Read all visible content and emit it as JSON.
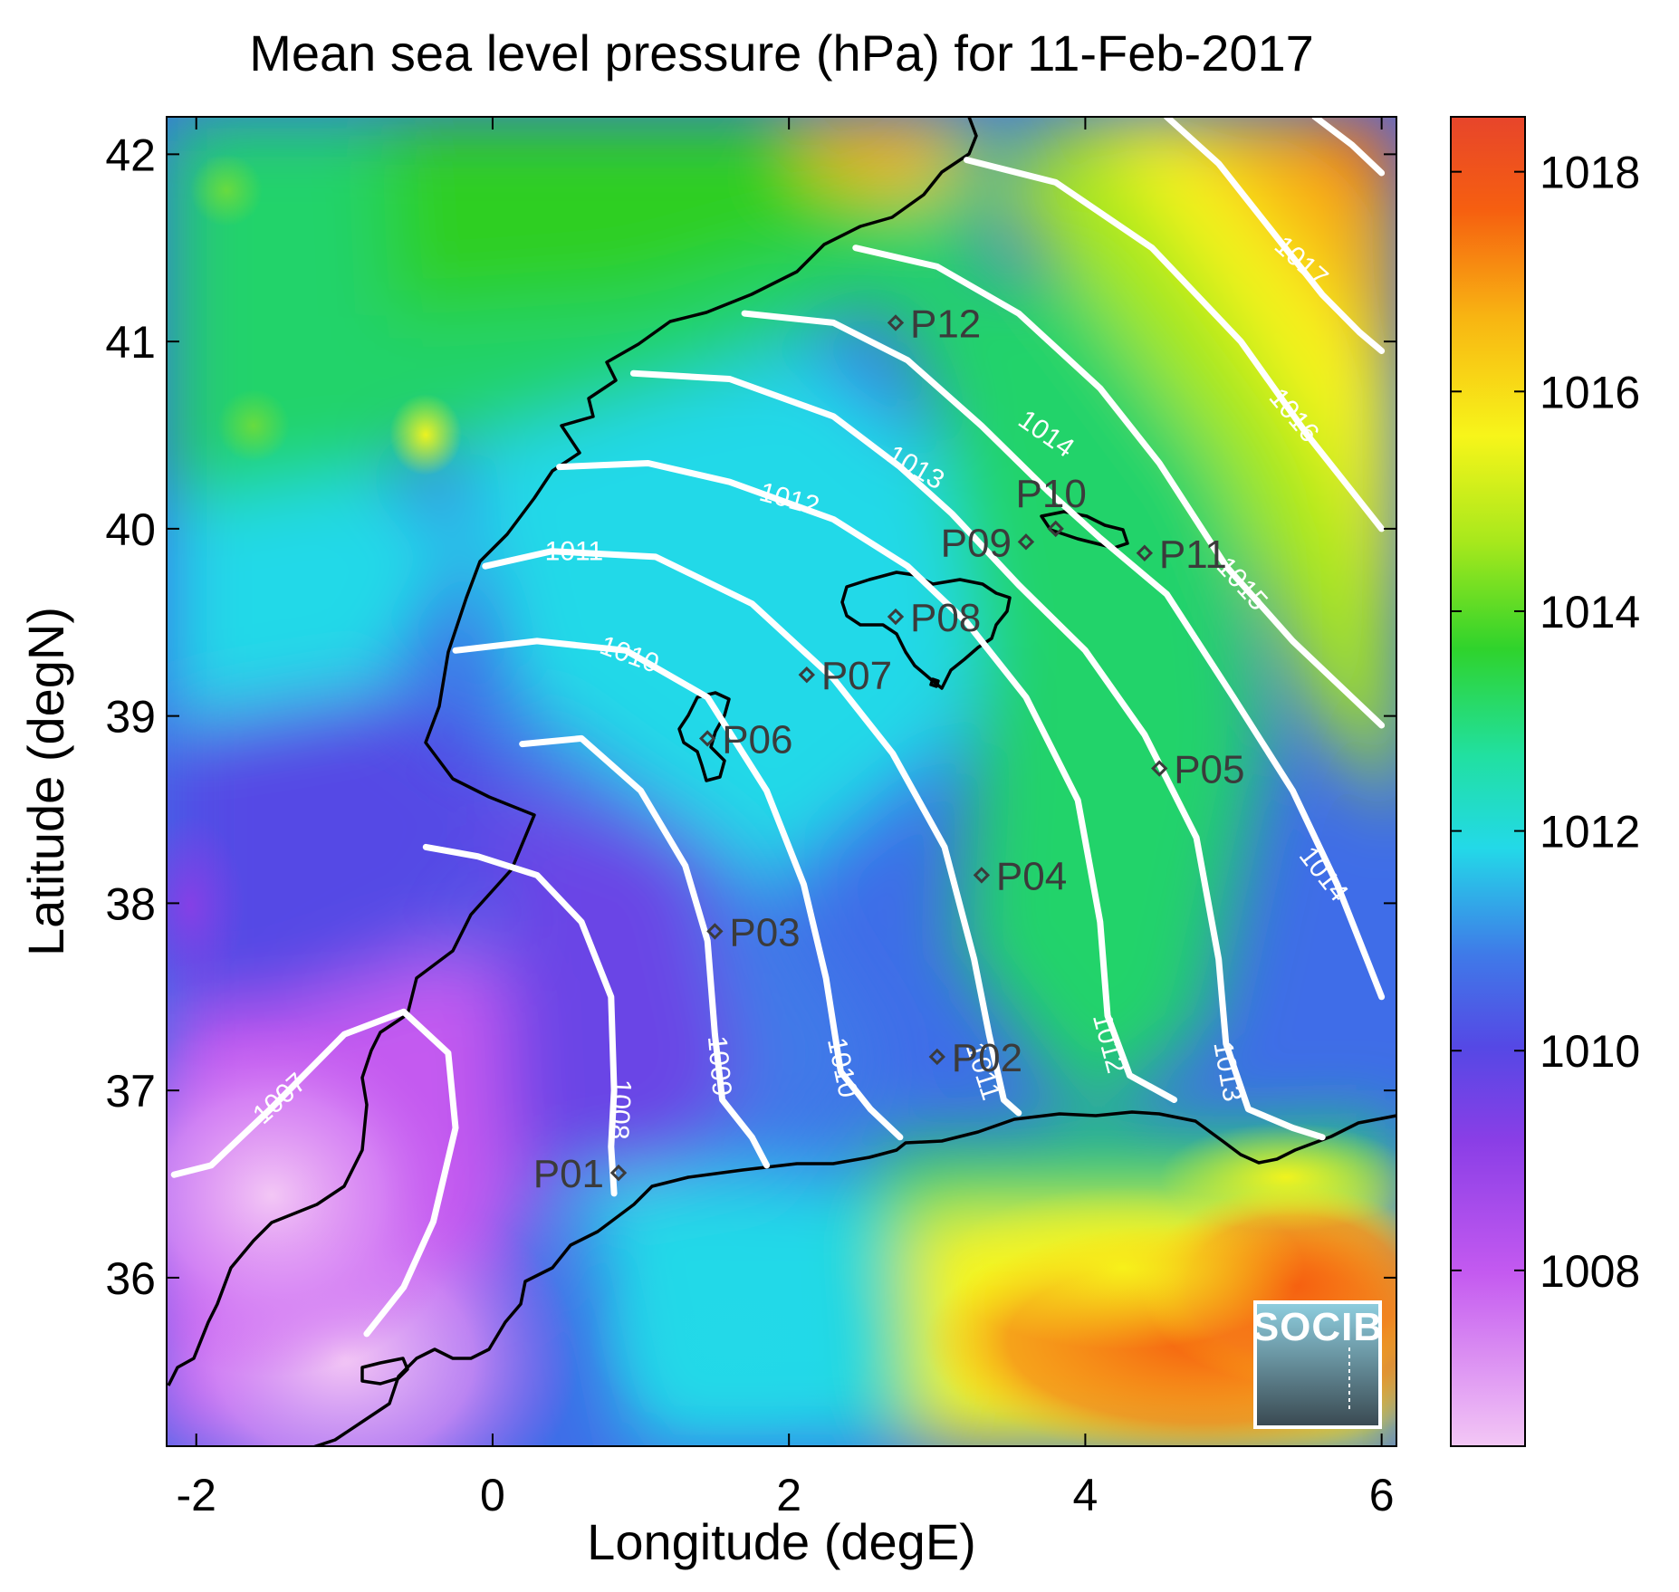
{
  "title": "Mean sea level pressure (hPa) for 11-Feb-2017",
  "logo_text": "SOCIB",
  "chart_data": {
    "type": "heatmap",
    "title": "Mean sea level pressure (hPa) for 11-Feb-2017",
    "xlabel": "Longitude (degE)",
    "ylabel": "Latitude (degN)",
    "xlim": [
      -2.2,
      6.1
    ],
    "ylim": [
      35.1,
      42.2
    ],
    "x_ticks": [
      -2,
      0,
      2,
      4,
      6
    ],
    "y_ticks": [
      36,
      37,
      38,
      39,
      40,
      41,
      42
    ],
    "x_tick_labels": [
      "-2",
      "0",
      "2",
      "4",
      "6"
    ],
    "y_tick_labels": [
      "36",
      "37",
      "38",
      "39",
      "40",
      "41",
      "42"
    ],
    "colorbar": {
      "range": [
        1006.4,
        1018.5
      ],
      "ticks": [
        1008,
        1010,
        1012,
        1014,
        1016,
        1018
      ],
      "tick_labels": [
        "1008",
        "1010",
        "1012",
        "1014",
        "1016",
        "1018"
      ],
      "colormap": [
        "#f3c7f5",
        "#c45af0",
        "#8a3ee6",
        "#3f6de8",
        "#23d9e8",
        "#21d36b",
        "#2fcf23",
        "#a7e81c",
        "#f7f51a",
        "#f8b412",
        "#f65f10",
        "#e7452b"
      ]
    },
    "contours": [
      {
        "level": "1007",
        "points": [
          [
            -2.15,
            36.55
          ],
          [
            -1.9,
            36.6
          ],
          [
            -1.5,
            36.9
          ],
          [
            -1.0,
            37.3
          ],
          [
            -0.6,
            37.42
          ],
          [
            -0.3,
            37.2
          ],
          [
            -0.25,
            36.8
          ],
          [
            -0.4,
            36.3
          ],
          [
            -0.6,
            35.95
          ],
          [
            -0.85,
            35.7
          ]
        ]
      },
      {
        "level": "1008",
        "points": [
          [
            -0.45,
            38.3
          ],
          [
            -0.1,
            38.25
          ],
          [
            0.3,
            38.15
          ],
          [
            0.6,
            37.9
          ],
          [
            0.8,
            37.5
          ],
          [
            0.82,
            37.0
          ],
          [
            0.8,
            36.7
          ],
          [
            0.82,
            36.45
          ]
        ]
      },
      {
        "level": "1009",
        "points": [
          [
            0.2,
            38.85
          ],
          [
            0.6,
            38.88
          ],
          [
            1.0,
            38.6
          ],
          [
            1.3,
            38.2
          ],
          [
            1.45,
            37.8
          ],
          [
            1.5,
            37.3
          ],
          [
            1.55,
            36.95
          ],
          [
            1.75,
            36.75
          ],
          [
            1.85,
            36.6
          ]
        ]
      },
      {
        "level": "1010",
        "points": [
          [
            -0.25,
            39.35
          ],
          [
            0.3,
            39.4
          ],
          [
            0.9,
            39.35
          ],
          [
            1.45,
            39.1
          ],
          [
            1.85,
            38.6
          ],
          [
            2.1,
            38.1
          ],
          [
            2.25,
            37.6
          ],
          [
            2.35,
            37.1
          ],
          [
            2.55,
            36.9
          ],
          [
            2.75,
            36.75
          ]
        ]
      },
      {
        "level": "1011",
        "points": [
          [
            -0.05,
            39.8
          ],
          [
            0.4,
            39.88
          ],
          [
            1.1,
            39.85
          ],
          [
            1.75,
            39.6
          ],
          [
            2.3,
            39.2
          ],
          [
            2.7,
            38.8
          ],
          [
            3.05,
            38.3
          ],
          [
            3.25,
            37.7
          ],
          [
            3.35,
            37.3
          ],
          [
            3.45,
            36.95
          ],
          [
            3.55,
            36.88
          ]
        ]
      },
      {
        "level": "1012",
        "points": [
          [
            0.45,
            40.33
          ],
          [
            1.05,
            40.35
          ],
          [
            1.6,
            40.25
          ],
          [
            2.3,
            40.05
          ],
          [
            2.8,
            39.8
          ],
          [
            3.2,
            39.5
          ],
          [
            3.6,
            39.1
          ],
          [
            3.95,
            38.55
          ],
          [
            4.1,
            37.9
          ],
          [
            4.15,
            37.4
          ],
          [
            4.3,
            37.08
          ],
          [
            4.6,
            36.95
          ]
        ]
      },
      {
        "level": "1013",
        "points": [
          [
            0.95,
            40.83
          ],
          [
            1.6,
            40.8
          ],
          [
            2.3,
            40.6
          ],
          [
            2.75,
            40.33
          ],
          [
            3.1,
            40.08
          ],
          [
            3.55,
            39.7
          ],
          [
            4.0,
            39.35
          ],
          [
            4.4,
            38.9
          ],
          [
            4.75,
            38.35
          ],
          [
            4.9,
            37.7
          ],
          [
            4.95,
            37.25
          ],
          [
            5.1,
            36.9
          ],
          [
            5.4,
            36.8
          ],
          [
            5.6,
            36.75
          ]
        ]
      },
      {
        "level": "1014",
        "points": [
          [
            1.7,
            41.15
          ],
          [
            2.3,
            41.1
          ],
          [
            2.8,
            40.9
          ],
          [
            3.3,
            40.55
          ],
          [
            3.75,
            40.2
          ],
          [
            4.1,
            39.95
          ],
          [
            4.55,
            39.65
          ],
          [
            5.0,
            39.1
          ],
          [
            5.4,
            38.6
          ],
          [
            5.7,
            38.1
          ],
          [
            5.9,
            37.7
          ],
          [
            6.0,
            37.5
          ]
        ]
      },
      {
        "level": "1015",
        "points": [
          [
            2.45,
            41.5
          ],
          [
            3.0,
            41.4
          ],
          [
            3.55,
            41.15
          ],
          [
            4.1,
            40.75
          ],
          [
            4.5,
            40.35
          ],
          [
            4.95,
            39.8
          ],
          [
            5.4,
            39.4
          ],
          [
            5.8,
            39.1
          ],
          [
            6.0,
            38.95
          ]
        ]
      },
      {
        "level": "1016",
        "points": [
          [
            3.2,
            41.97
          ],
          [
            3.8,
            41.85
          ],
          [
            4.45,
            41.5
          ],
          [
            5.05,
            41.0
          ],
          [
            5.5,
            40.5
          ],
          [
            5.8,
            40.2
          ],
          [
            6.0,
            40.0
          ]
        ]
      },
      {
        "level": "1017",
        "points": [
          [
            4.55,
            42.2
          ],
          [
            4.9,
            41.95
          ],
          [
            5.25,
            41.6
          ],
          [
            5.6,
            41.25
          ],
          [
            5.85,
            41.05
          ],
          [
            6.0,
            40.95
          ]
        ]
      },
      {
        "level": "1018",
        "points": [
          [
            5.55,
            42.2
          ],
          [
            5.8,
            42.05
          ],
          [
            6.0,
            41.9
          ]
        ]
      }
    ],
    "contour_labels": [
      {
        "text": "1007",
        "lon": -1.43,
        "lat": 36.95,
        "angle": -42
      },
      {
        "text": "1008",
        "lon": 0.85,
        "lat": 36.9,
        "angle": 93
      },
      {
        "text": "1009",
        "lon": 1.52,
        "lat": 37.13,
        "angle": 85
      },
      {
        "text": "1010",
        "lon": 0.92,
        "lat": 39.32,
        "angle": 20
      },
      {
        "text": "1010",
        "lon": 2.35,
        "lat": 37.12,
        "angle": 78
      },
      {
        "text": "1011",
        "lon": 0.55,
        "lat": 39.87,
        "angle": 0
      },
      {
        "text": "1011",
        "lon": 3.3,
        "lat": 37.1,
        "angle": 72
      },
      {
        "text": "1012",
        "lon": 2.0,
        "lat": 40.15,
        "angle": 15
      },
      {
        "text": "1012",
        "lon": 4.15,
        "lat": 37.25,
        "angle": 75
      },
      {
        "text": "1013",
        "lon": 2.85,
        "lat": 40.32,
        "angle": 30
      },
      {
        "text": "1013",
        "lon": 4.95,
        "lat": 37.1,
        "angle": 80
      },
      {
        "text": "1014",
        "lon": 3.73,
        "lat": 40.5,
        "angle": 35
      },
      {
        "text": "1014",
        "lon": 5.6,
        "lat": 38.15,
        "angle": 52
      },
      {
        "text": "1015",
        "lon": 5.05,
        "lat": 39.7,
        "angle": 48
      },
      {
        "text": "1016",
        "lon": 5.4,
        "lat": 40.6,
        "angle": 50
      },
      {
        "text": "1017",
        "lon": 5.45,
        "lat": 41.42,
        "angle": 42
      }
    ],
    "stations": [
      {
        "name": "P01",
        "lon": 0.85,
        "lat": 36.56,
        "label_side": "left"
      },
      {
        "name": "P02",
        "lon": 3.0,
        "lat": 37.18,
        "label_side": "right"
      },
      {
        "name": "P03",
        "lon": 1.5,
        "lat": 37.85,
        "label_side": "right"
      },
      {
        "name": "P04",
        "lon": 3.3,
        "lat": 38.15,
        "label_side": "right"
      },
      {
        "name": "P05",
        "lon": 4.5,
        "lat": 38.72,
        "label_side": "right"
      },
      {
        "name": "P06",
        "lon": 1.45,
        "lat": 38.88,
        "label_side": "right"
      },
      {
        "name": "P07",
        "lon": 2.12,
        "lat": 39.22,
        "label_side": "right"
      },
      {
        "name": "P08",
        "lon": 2.72,
        "lat": 39.53,
        "label_side": "right"
      },
      {
        "name": "P09",
        "lon": 3.6,
        "lat": 39.93,
        "label_side": "left"
      },
      {
        "name": "P10",
        "lon": 3.8,
        "lat": 40.0,
        "label_side": "above"
      },
      {
        "name": "P11",
        "lon": 4.4,
        "lat": 39.87,
        "label_side": "right"
      },
      {
        "name": "P12",
        "lon": 2.72,
        "lat": 41.1,
        "label_side": "right"
      }
    ]
  }
}
